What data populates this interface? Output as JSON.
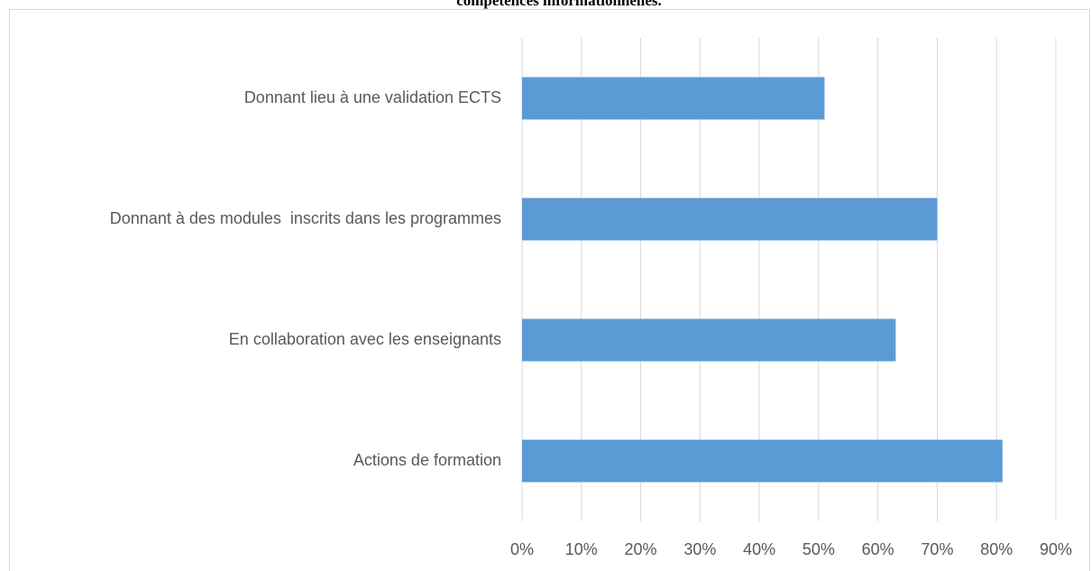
{
  "chart_data": {
    "type": "hbar",
    "title": "compétences informationnelles.",
    "categories": [
      "Donnant lieu à une validation ECTS",
      "Donnant à des modules  inscrits dans les programmes",
      "En collaboration avec les enseignants",
      "Actions de formation"
    ],
    "values": [
      51,
      70,
      63,
      81
    ],
    "color": "#5b9bd5",
    "xlim": [
      0,
      90
    ],
    "xticks": [
      {
        "value": 0,
        "label": "0%"
      },
      {
        "value": 10,
        "label": "10%"
      },
      {
        "value": 20,
        "label": "20%"
      },
      {
        "value": 30,
        "label": "30%"
      },
      {
        "value": 40,
        "label": "40%"
      },
      {
        "value": 50,
        "label": "50%"
      },
      {
        "value": 60,
        "label": "60%"
      },
      {
        "value": 70,
        "label": "70%"
      },
      {
        "value": 80,
        "label": "80%"
      },
      {
        "value": 90,
        "label": "90%"
      }
    ],
    "grid": true
  }
}
